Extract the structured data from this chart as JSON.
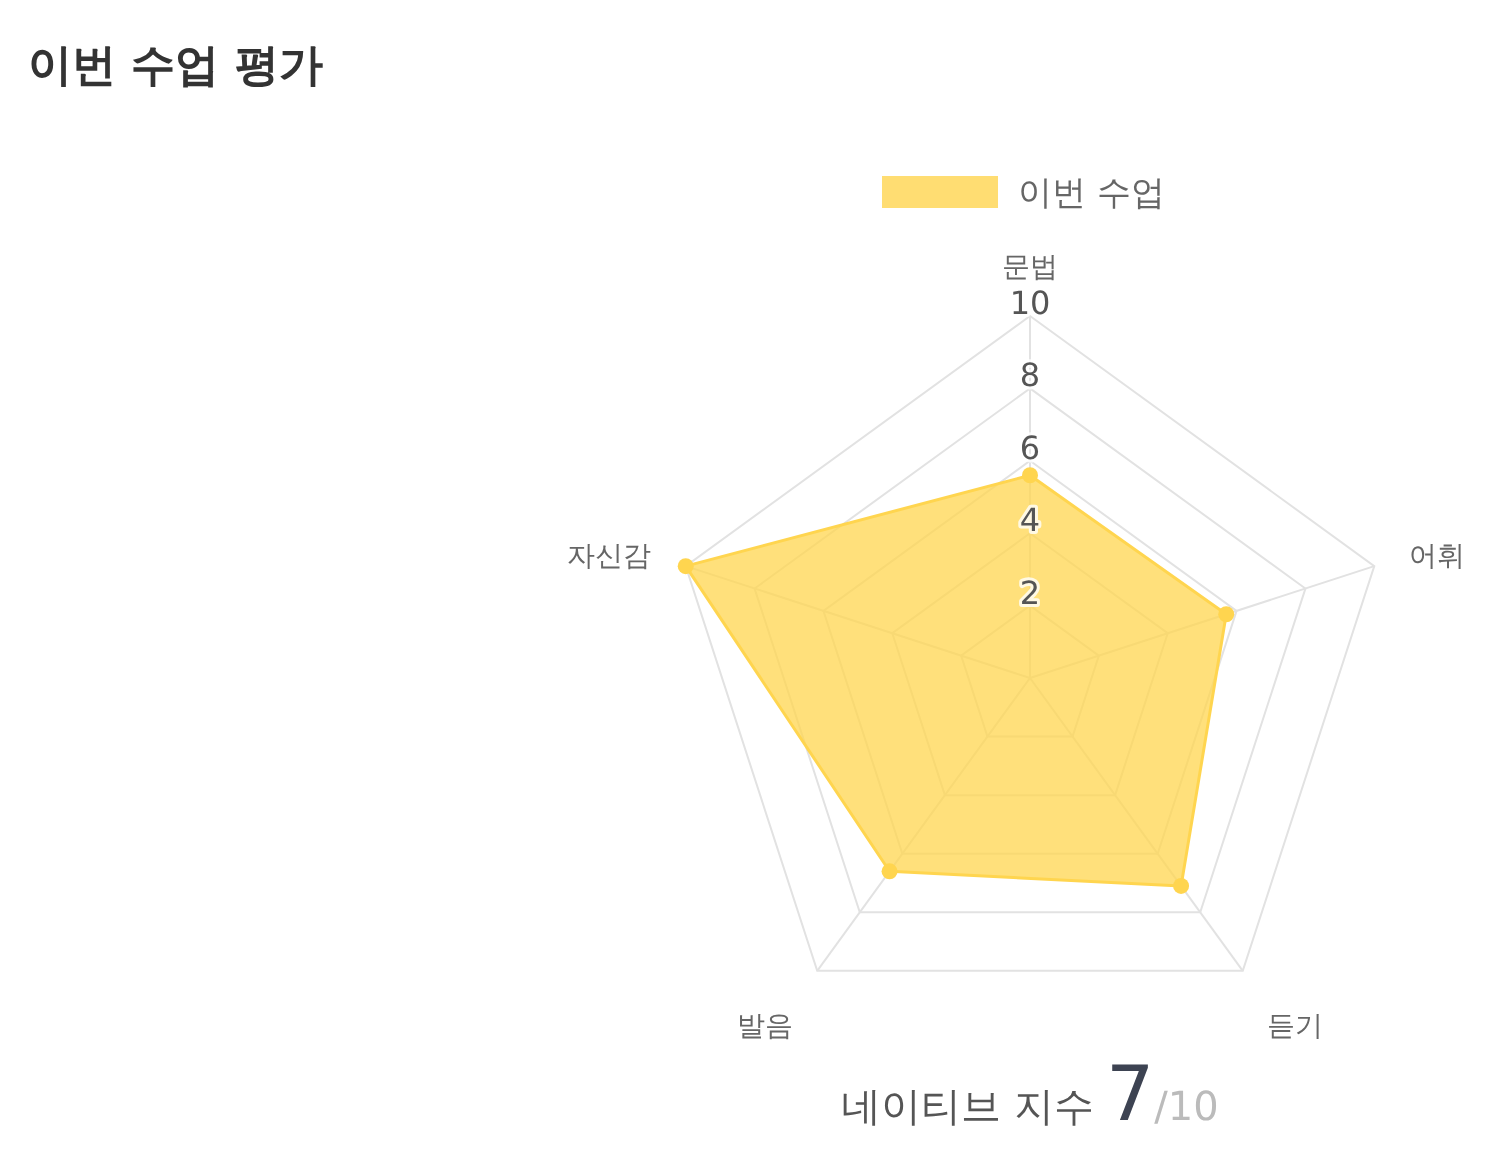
{
  "chart_data": {
    "type": "radar",
    "title": "이번 수업 평가",
    "categories": [
      "문법",
      "어휘",
      "듣기",
      "발음",
      "자신감"
    ],
    "series": [
      {
        "name": "이번 수업",
        "color": "#ffd54f",
        "values": [
          5.6,
          5.7,
          7.1,
          6.6,
          10
        ]
      }
    ],
    "ylim": [
      0,
      10
    ],
    "yticks": [
      2,
      4,
      6,
      8,
      10
    ],
    "grid": true,
    "legend": "top",
    "marker": "circle",
    "annotations": [
      "네이티브 지수",
      "7",
      "/10"
    ]
  }
}
